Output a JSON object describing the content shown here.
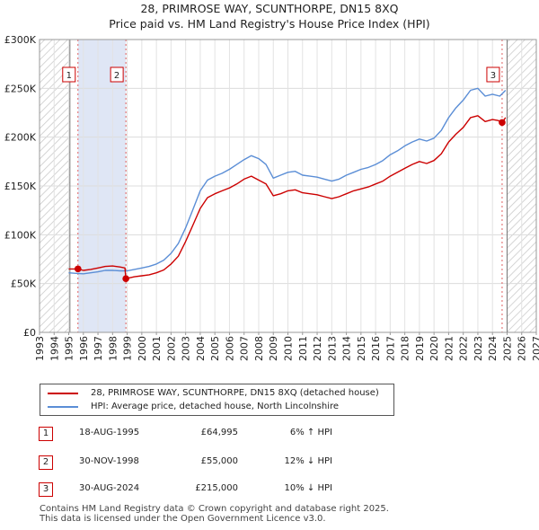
{
  "title_line1": "28, PRIMROSE WAY, SCUNTHORPE, DN15 8XQ",
  "title_line2": "Price paid vs. HM Land Registry's House Price Index (HPI)",
  "chart_data": {
    "type": "line",
    "xlim": [
      1993,
      2027
    ],
    "ylim": [
      0,
      300000
    ],
    "y_ticks": [
      0,
      50000,
      100000,
      150000,
      200000,
      250000,
      300000
    ],
    "y_tick_labels": [
      "£0",
      "£50K",
      "£100K",
      "£150K",
      "£200K",
      "£250K",
      "£300K"
    ],
    "x_ticks": [
      1993,
      1994,
      1995,
      1996,
      1997,
      1998,
      1999,
      2000,
      2001,
      2002,
      2003,
      2004,
      2005,
      2006,
      2007,
      2008,
      2009,
      2010,
      2011,
      2012,
      2013,
      2014,
      2015,
      2016,
      2017,
      2018,
      2019,
      2020,
      2021,
      2022,
      2023,
      2024,
      2025,
      2026,
      2027
    ],
    "hatched_ranges": [
      [
        1993,
        1995.08
      ],
      [
        2025.0,
        2027
      ]
    ],
    "shaded_range": [
      1995.63,
      1998.91
    ],
    "grid": true,
    "series": [
      {
        "name": "28, PRIMROSE WAY, SCUNTHORPE, DN15 8XQ (detached house)",
        "color": "#cc0000",
        "points": [
          [
            1995.0,
            65000
          ],
          [
            1995.63,
            64995
          ],
          [
            1996.0,
            63500
          ],
          [
            1996.5,
            64500
          ],
          [
            1997.0,
            66000
          ],
          [
            1997.5,
            67500
          ],
          [
            1998.0,
            68000
          ],
          [
            1998.5,
            67000
          ],
          [
            1998.85,
            66000
          ],
          [
            1998.91,
            55000
          ],
          [
            1999.5,
            57000
          ],
          [
            2000.0,
            58000
          ],
          [
            2000.5,
            59000
          ],
          [
            2001.0,
            61000
          ],
          [
            2001.5,
            64000
          ],
          [
            2002.0,
            70000
          ],
          [
            2002.5,
            78000
          ],
          [
            2003.0,
            93000
          ],
          [
            2003.5,
            110000
          ],
          [
            2004.0,
            127000
          ],
          [
            2004.5,
            138000
          ],
          [
            2005.0,
            142000
          ],
          [
            2005.5,
            145000
          ],
          [
            2006.0,
            148000
          ],
          [
            2006.5,
            152000
          ],
          [
            2007.0,
            157000
          ],
          [
            2007.5,
            160000
          ],
          [
            2008.0,
            156000
          ],
          [
            2008.5,
            152000
          ],
          [
            2009.0,
            140000
          ],
          [
            2009.5,
            142000
          ],
          [
            2010.0,
            145000
          ],
          [
            2010.5,
            146000
          ],
          [
            2011.0,
            143000
          ],
          [
            2011.5,
            142000
          ],
          [
            2012.0,
            141000
          ],
          [
            2012.5,
            139000
          ],
          [
            2013.0,
            137000
          ],
          [
            2013.5,
            139000
          ],
          [
            2014.0,
            142000
          ],
          [
            2014.5,
            145000
          ],
          [
            2015.0,
            147000
          ],
          [
            2015.5,
            149000
          ],
          [
            2016.0,
            152000
          ],
          [
            2016.5,
            155000
          ],
          [
            2017.0,
            160000
          ],
          [
            2017.5,
            164000
          ],
          [
            2018.0,
            168000
          ],
          [
            2018.5,
            172000
          ],
          [
            2019.0,
            175000
          ],
          [
            2019.5,
            173000
          ],
          [
            2020.0,
            176000
          ],
          [
            2020.5,
            183000
          ],
          [
            2021.0,
            195000
          ],
          [
            2021.5,
            203000
          ],
          [
            2022.0,
            210000
          ],
          [
            2022.5,
            220000
          ],
          [
            2023.0,
            222000
          ],
          [
            2023.5,
            216000
          ],
          [
            2024.0,
            218000
          ],
          [
            2024.4,
            217000
          ],
          [
            2024.66,
            215000
          ],
          [
            2024.9,
            220000
          ]
        ]
      },
      {
        "name": "HPI: Average price, detached house, North Lincolnshire",
        "color": "#5b8ed6",
        "points": [
          [
            1995.0,
            61000
          ],
          [
            1995.5,
            60500
          ],
          [
            1996.0,
            60000
          ],
          [
            1996.5,
            61000
          ],
          [
            1997.0,
            62000
          ],
          [
            1997.5,
            63500
          ],
          [
            1998.0,
            63500
          ],
          [
            1998.5,
            63000
          ],
          [
            1999.0,
            63000
          ],
          [
            1999.5,
            64500
          ],
          [
            2000.0,
            66000
          ],
          [
            2000.5,
            67500
          ],
          [
            2001.0,
            70000
          ],
          [
            2001.5,
            74000
          ],
          [
            2002.0,
            81000
          ],
          [
            2002.5,
            91000
          ],
          [
            2003.0,
            107000
          ],
          [
            2003.5,
            126000
          ],
          [
            2004.0,
            145000
          ],
          [
            2004.5,
            156000
          ],
          [
            2005.0,
            160000
          ],
          [
            2005.5,
            163000
          ],
          [
            2006.0,
            167000
          ],
          [
            2006.5,
            172000
          ],
          [
            2007.0,
            177000
          ],
          [
            2007.5,
            181000
          ],
          [
            2008.0,
            178000
          ],
          [
            2008.5,
            172000
          ],
          [
            2009.0,
            158000
          ],
          [
            2009.5,
            161000
          ],
          [
            2010.0,
            164000
          ],
          [
            2010.5,
            165000
          ],
          [
            2011.0,
            161000
          ],
          [
            2011.5,
            160000
          ],
          [
            2012.0,
            159000
          ],
          [
            2012.5,
            157000
          ],
          [
            2013.0,
            155000
          ],
          [
            2013.5,
            157000
          ],
          [
            2014.0,
            161000
          ],
          [
            2014.5,
            164000
          ],
          [
            2015.0,
            167000
          ],
          [
            2015.5,
            169000
          ],
          [
            2016.0,
            172000
          ],
          [
            2016.5,
            176000
          ],
          [
            2017.0,
            182000
          ],
          [
            2017.5,
            186000
          ],
          [
            2018.0,
            191000
          ],
          [
            2018.5,
            195000
          ],
          [
            2019.0,
            198000
          ],
          [
            2019.5,
            196000
          ],
          [
            2020.0,
            199000
          ],
          [
            2020.5,
            207000
          ],
          [
            2021.0,
            220000
          ],
          [
            2021.5,
            230000
          ],
          [
            2022.0,
            238000
          ],
          [
            2022.5,
            248000
          ],
          [
            2023.0,
            250000
          ],
          [
            2023.5,
            242000
          ],
          [
            2024.0,
            244000
          ],
          [
            2024.5,
            242000
          ],
          [
            2024.9,
            248000
          ]
        ]
      }
    ],
    "sales": [
      {
        "label": "1",
        "year": 1995.63,
        "price": 64995
      },
      {
        "label": "2",
        "year": 1998.91,
        "price": 55000
      },
      {
        "label": "3",
        "year": 2024.66,
        "price": 215000
      }
    ]
  },
  "legend": {
    "property": "28, PRIMROSE WAY, SCUNTHORPE, DN15 8XQ (detached house)",
    "hpi": "HPI: Average price, detached house, North Lincolnshire"
  },
  "transactions": [
    {
      "label": "1",
      "date": "18-AUG-1995",
      "price": "£64,995",
      "hpi": "6% ↑ HPI"
    },
    {
      "label": "2",
      "date": "30-NOV-1998",
      "price": "£55,000",
      "hpi": "12% ↓ HPI"
    },
    {
      "label": "3",
      "date": "30-AUG-2024",
      "price": "£215,000",
      "hpi": "10% ↓ HPI"
    }
  ],
  "footer_line1": "Contains HM Land Registry data © Crown copyright and database right 2025.",
  "footer_line2": "This data is licensed under the Open Government Licence v3.0."
}
